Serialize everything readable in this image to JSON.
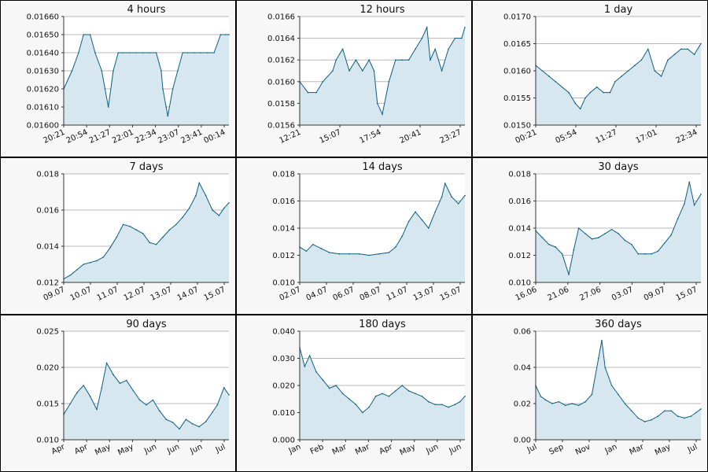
{
  "chart_data": [
    {
      "type": "area",
      "title": "4 hours",
      "ylim": [
        0.016,
        0.0166
      ],
      "yticks": [
        "0.01600",
        "0.01610",
        "0.01620",
        "0.01630",
        "0.01640",
        "0.01650",
        "0.01660"
      ],
      "xtick_labels": [
        "20:21",
        "20:54",
        "21:27",
        "22:01",
        "22:34",
        "23:07",
        "23:41",
        "00:14"
      ],
      "x": [
        0,
        0.05,
        0.09,
        0.12,
        0.16,
        0.19,
        0.23,
        0.25,
        0.27,
        0.3,
        0.33,
        0.36,
        0.4,
        0.44,
        0.48,
        0.52,
        0.56,
        0.59,
        0.6,
        0.62,
        0.63,
        0.66,
        0.69,
        0.72,
        0.75,
        0.79,
        0.83,
        0.87,
        0.91,
        0.95,
        0.98,
        1
      ],
      "y": [
        0.0162,
        0.0163,
        0.0164,
        0.0165,
        0.0165,
        0.0164,
        0.0163,
        0.0162,
        0.0161,
        0.0163,
        0.0164,
        0.0164,
        0.0164,
        0.0164,
        0.0164,
        0.0164,
        0.0164,
        0.0163,
        0.0162,
        0.0161,
        0.01605,
        0.0162,
        0.0163,
        0.0164,
        0.0164,
        0.0164,
        0.0164,
        0.0164,
        0.0164,
        0.0165,
        0.0165,
        0.0165
      ],
      "grid": true
    },
    {
      "type": "area",
      "title": "12 hours",
      "ylim": [
        0.0156,
        0.0166
      ],
      "yticks": [
        "0.0156",
        "0.0158",
        "0.0160",
        "0.0162",
        "0.0164",
        "0.0166"
      ],
      "xtick_labels": [
        "12:21",
        "15:07",
        "17:54",
        "20:41",
        "23:27"
      ],
      "x": [
        0,
        0.05,
        0.1,
        0.14,
        0.2,
        0.22,
        0.26,
        0.3,
        0.34,
        0.38,
        0.42,
        0.45,
        0.47,
        0.5,
        0.54,
        0.58,
        0.62,
        0.66,
        0.7,
        0.74,
        0.77,
        0.79,
        0.82,
        0.86,
        0.9,
        0.94,
        0.98,
        1
      ],
      "y": [
        0.016,
        0.0159,
        0.0159,
        0.016,
        0.0161,
        0.0162,
        0.0163,
        0.0161,
        0.0162,
        0.0161,
        0.0162,
        0.0161,
        0.0158,
        0.0157,
        0.016,
        0.0162,
        0.0162,
        0.0162,
        0.0163,
        0.0164,
        0.0165,
        0.0162,
        0.0163,
        0.0161,
        0.0163,
        0.0164,
        0.0164,
        0.0165
      ],
      "grid": true
    },
    {
      "type": "area",
      "title": "1 day",
      "ylim": [
        0.015,
        0.017
      ],
      "yticks": [
        "0.0150",
        "0.0155",
        "0.0160",
        "0.0165",
        "0.0170"
      ],
      "xtick_labels": [
        "00:21",
        "05:54",
        "11:27",
        "17:01",
        "22:34"
      ],
      "x": [
        0,
        0.04,
        0.08,
        0.12,
        0.16,
        0.2,
        0.24,
        0.27,
        0.3,
        0.33,
        0.37,
        0.41,
        0.45,
        0.48,
        0.52,
        0.56,
        0.6,
        0.64,
        0.68,
        0.72,
        0.76,
        0.8,
        0.84,
        0.88,
        0.92,
        0.96,
        1
      ],
      "y": [
        0.0161,
        0.016,
        0.0159,
        0.0158,
        0.0157,
        0.0156,
        0.0154,
        0.0153,
        0.0155,
        0.0156,
        0.0157,
        0.0156,
        0.0156,
        0.0158,
        0.0159,
        0.016,
        0.0161,
        0.0162,
        0.0164,
        0.016,
        0.0159,
        0.0162,
        0.0163,
        0.0164,
        0.0164,
        0.0163,
        0.0165
      ],
      "grid": true
    },
    {
      "type": "area",
      "title": "7 days",
      "ylim": [
        0.012,
        0.018
      ],
      "yticks": [
        "0.012",
        "0.014",
        "0.016",
        "0.018"
      ],
      "xtick_labels": [
        "09.07",
        "10.07",
        "11.07",
        "12.07",
        "13.07",
        "14.07",
        "15.07"
      ],
      "x": [
        0,
        0.04,
        0.08,
        0.12,
        0.16,
        0.2,
        0.24,
        0.28,
        0.32,
        0.36,
        0.4,
        0.44,
        0.48,
        0.52,
        0.56,
        0.6,
        0.64,
        0.68,
        0.72,
        0.76,
        0.8,
        0.82,
        0.86,
        0.9,
        0.94,
        0.97,
        1
      ],
      "y": [
        0.0122,
        0.0124,
        0.0127,
        0.013,
        0.0131,
        0.0132,
        0.0134,
        0.0139,
        0.0145,
        0.0152,
        0.0151,
        0.0149,
        0.0147,
        0.0142,
        0.0141,
        0.0145,
        0.0149,
        0.0152,
        0.0156,
        0.0161,
        0.0168,
        0.0175,
        0.0168,
        0.016,
        0.0157,
        0.0161,
        0.0164
      ],
      "grid": true
    },
    {
      "type": "area",
      "title": "14 days",
      "ylim": [
        0.01,
        0.018
      ],
      "yticks": [
        "0.010",
        "0.012",
        "0.014",
        "0.016",
        "0.018"
      ],
      "xtick_labels": [
        "02.07",
        "04.07",
        "06.07",
        "08.07",
        "11.07",
        "13.07",
        "15.07"
      ],
      "x": [
        0,
        0.04,
        0.08,
        0.13,
        0.18,
        0.24,
        0.3,
        0.36,
        0.42,
        0.48,
        0.54,
        0.58,
        0.62,
        0.66,
        0.7,
        0.74,
        0.78,
        0.82,
        0.86,
        0.88,
        0.92,
        0.96,
        1
      ],
      "y": [
        0.0126,
        0.0123,
        0.0128,
        0.0125,
        0.0122,
        0.0121,
        0.0121,
        0.0121,
        0.012,
        0.0121,
        0.0122,
        0.0126,
        0.0134,
        0.0145,
        0.0152,
        0.0146,
        0.014,
        0.0152,
        0.0163,
        0.0173,
        0.0163,
        0.0158,
        0.0164
      ],
      "grid": true
    },
    {
      "type": "area",
      "title": "30 days",
      "ylim": [
        0.01,
        0.018
      ],
      "yticks": [
        "0.010",
        "0.012",
        "0.014",
        "0.016",
        "0.018"
      ],
      "xtick_labels": [
        "16.06",
        "21.06",
        "27.06",
        "03.07",
        "09.07",
        "15.07"
      ],
      "x": [
        0,
        0.04,
        0.08,
        0.12,
        0.16,
        0.2,
        0.23,
        0.26,
        0.3,
        0.34,
        0.38,
        0.42,
        0.46,
        0.5,
        0.54,
        0.58,
        0.62,
        0.66,
        0.7,
        0.74,
        0.78,
        0.82,
        0.86,
        0.9,
        0.93,
        0.96,
        1
      ],
      "y": [
        0.0138,
        0.0133,
        0.0128,
        0.0126,
        0.0121,
        0.0106,
        0.0124,
        0.014,
        0.0136,
        0.0132,
        0.0133,
        0.0136,
        0.0139,
        0.0136,
        0.0131,
        0.0128,
        0.0121,
        0.0121,
        0.0121,
        0.0123,
        0.0129,
        0.0135,
        0.0147,
        0.0158,
        0.0174,
        0.0157,
        0.0165
      ],
      "grid": true
    },
    {
      "type": "area",
      "title": "90 days",
      "ylim": [
        0.01,
        0.025
      ],
      "yticks": [
        "0.010",
        "0.015",
        "0.020",
        "0.025"
      ],
      "xtick_labels": [
        "Apr",
        "Apr",
        "May",
        "May",
        "Jun",
        "Jun",
        "Jun",
        "Jul"
      ],
      "x": [
        0,
        0.04,
        0.08,
        0.12,
        0.16,
        0.2,
        0.23,
        0.26,
        0.3,
        0.34,
        0.38,
        0.42,
        0.46,
        0.5,
        0.54,
        0.58,
        0.62,
        0.66,
        0.7,
        0.74,
        0.78,
        0.82,
        0.86,
        0.9,
        0.93,
        0.97,
        1
      ],
      "y": [
        0.0135,
        0.015,
        0.0165,
        0.0175,
        0.016,
        0.0142,
        0.0172,
        0.0206,
        0.019,
        0.0178,
        0.0182,
        0.0168,
        0.0155,
        0.0148,
        0.0155,
        0.014,
        0.0128,
        0.0124,
        0.0115,
        0.0128,
        0.0122,
        0.0118,
        0.0125,
        0.0138,
        0.0148,
        0.0172,
        0.0162
      ],
      "grid": true
    },
    {
      "type": "area",
      "title": "180 days",
      "ylim": [
        0.0,
        0.04
      ],
      "yticks": [
        "0.000",
        "0.010",
        "0.020",
        "0.030",
        "0.040"
      ],
      "xtick_labels": [
        "Jan",
        "Feb",
        "Mar",
        "Mar",
        "Apr",
        "May",
        "Jun",
        "Jun"
      ],
      "x": [
        0,
        0.03,
        0.06,
        0.1,
        0.14,
        0.18,
        0.22,
        0.26,
        0.3,
        0.34,
        0.38,
        0.42,
        0.46,
        0.5,
        0.54,
        0.58,
        0.62,
        0.66,
        0.7,
        0.74,
        0.78,
        0.82,
        0.86,
        0.9,
        0.94,
        0.97,
        1
      ],
      "y": [
        0.034,
        0.027,
        0.031,
        0.025,
        0.022,
        0.019,
        0.02,
        0.017,
        0.015,
        0.013,
        0.01,
        0.012,
        0.016,
        0.017,
        0.016,
        0.018,
        0.02,
        0.018,
        0.017,
        0.016,
        0.014,
        0.013,
        0.013,
        0.012,
        0.013,
        0.014,
        0.016
      ],
      "grid": true
    },
    {
      "type": "area",
      "title": "360 days",
      "ylim": [
        0.0,
        0.06
      ],
      "yticks": [
        "0.00",
        "0.02",
        "0.04",
        "0.06"
      ],
      "xtick_labels": [
        "Jul",
        "Sep",
        "Nov",
        "Jan",
        "Mar",
        "May",
        "Jul"
      ],
      "x": [
        0,
        0.03,
        0.06,
        0.1,
        0.14,
        0.18,
        0.22,
        0.26,
        0.3,
        0.34,
        0.38,
        0.4,
        0.42,
        0.46,
        0.5,
        0.54,
        0.58,
        0.62,
        0.66,
        0.7,
        0.74,
        0.78,
        0.82,
        0.86,
        0.9,
        0.94,
        0.97,
        1
      ],
      "y": [
        0.03,
        0.024,
        0.022,
        0.02,
        0.021,
        0.019,
        0.02,
        0.019,
        0.021,
        0.025,
        0.045,
        0.055,
        0.04,
        0.03,
        0.025,
        0.02,
        0.016,
        0.012,
        0.01,
        0.011,
        0.013,
        0.016,
        0.016,
        0.013,
        0.012,
        0.013,
        0.015,
        0.017
      ],
      "grid": true
    }
  ],
  "colors": {
    "line": "#0e5e7e",
    "fill": "#d6e7ef",
    "grid": "#b8b8b8",
    "panel_bg": "#f7f7f7",
    "plot_bg": "#ffffff"
  }
}
